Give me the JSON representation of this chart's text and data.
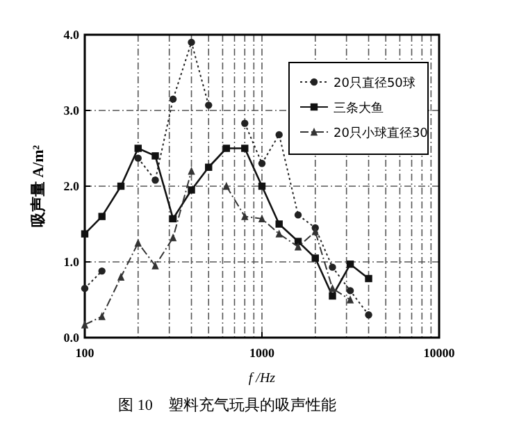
{
  "chart_data": {
    "type": "line",
    "xlabel": "f /Hz",
    "ylabel": "吸声量 A/m²",
    "annotations": [
      "图 10　塑料充气玩具的吸声性能"
    ],
    "x": [
      100,
      125,
      160,
      200,
      250,
      315,
      400,
      500,
      630,
      800,
      1000,
      1250,
      1600,
      2000,
      2500,
      3150,
      4000
    ],
    "xlim": [
      100,
      10000
    ],
    "xticks": [
      100,
      1000,
      10000
    ],
    "log": "x",
    "ylim": [
      0,
      4
    ],
    "yticks": [
      {
        "value": 0,
        "label": "0.0"
      },
      {
        "value": 1,
        "label": "1.0"
      },
      {
        "value": 2,
        "label": "2.0"
      },
      {
        "value": 3,
        "label": "3.0"
      },
      {
        "value": 4,
        "label": "4.0"
      }
    ],
    "grid": true,
    "legend": "top right",
    "series": [
      {
        "name": "20只直径50球",
        "color": "#222222",
        "marker": "circle",
        "line_style": "dotted",
        "values": [
          0.65,
          0.88,
          null,
          2.37,
          2.08,
          3.15,
          3.9,
          3.07,
          null,
          2.83,
          2.3,
          2.68,
          1.62,
          1.45,
          0.93,
          0.62,
          0.3
        ]
      },
      {
        "name": "三条大鱼",
        "color": "#111111",
        "marker": "square",
        "line_style": "solid",
        "values": [
          1.37,
          1.6,
          2.0,
          2.5,
          2.4,
          1.57,
          1.95,
          2.25,
          2.5,
          2.5,
          2.0,
          1.5,
          1.27,
          1.05,
          0.55,
          0.97,
          0.78
        ]
      },
      {
        "name": "20只小球直径30",
        "color": "#333333",
        "marker": "triangle",
        "line_style": "dashed",
        "values": [
          0.17,
          0.28,
          0.8,
          1.25,
          0.95,
          1.32,
          2.2,
          null,
          2.0,
          1.6,
          1.57,
          1.37,
          1.2,
          1.4,
          0.65,
          0.5,
          null
        ]
      }
    ]
  }
}
